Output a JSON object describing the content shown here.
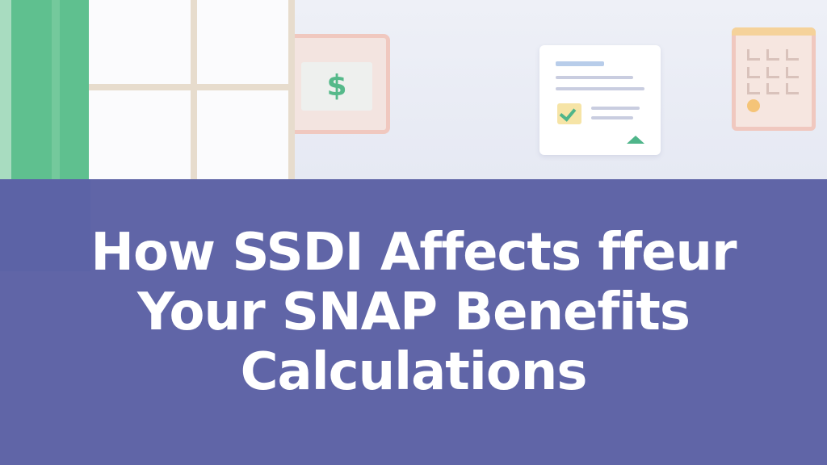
{
  "thumbnail": {
    "title_lines": [
      "How SSDI Affects ffeur",
      "Your SNAP Benefits",
      "Calculations"
    ],
    "money_card": {
      "symbol": "$"
    },
    "icons": [
      "dollar-card-icon",
      "document-check-icon",
      "calendar-icon"
    ],
    "colors": {
      "band": "#6065a7",
      "accent_green": "#5fc08f",
      "title_text": "#ffffff",
      "card_border": "#f0c8bf"
    }
  }
}
